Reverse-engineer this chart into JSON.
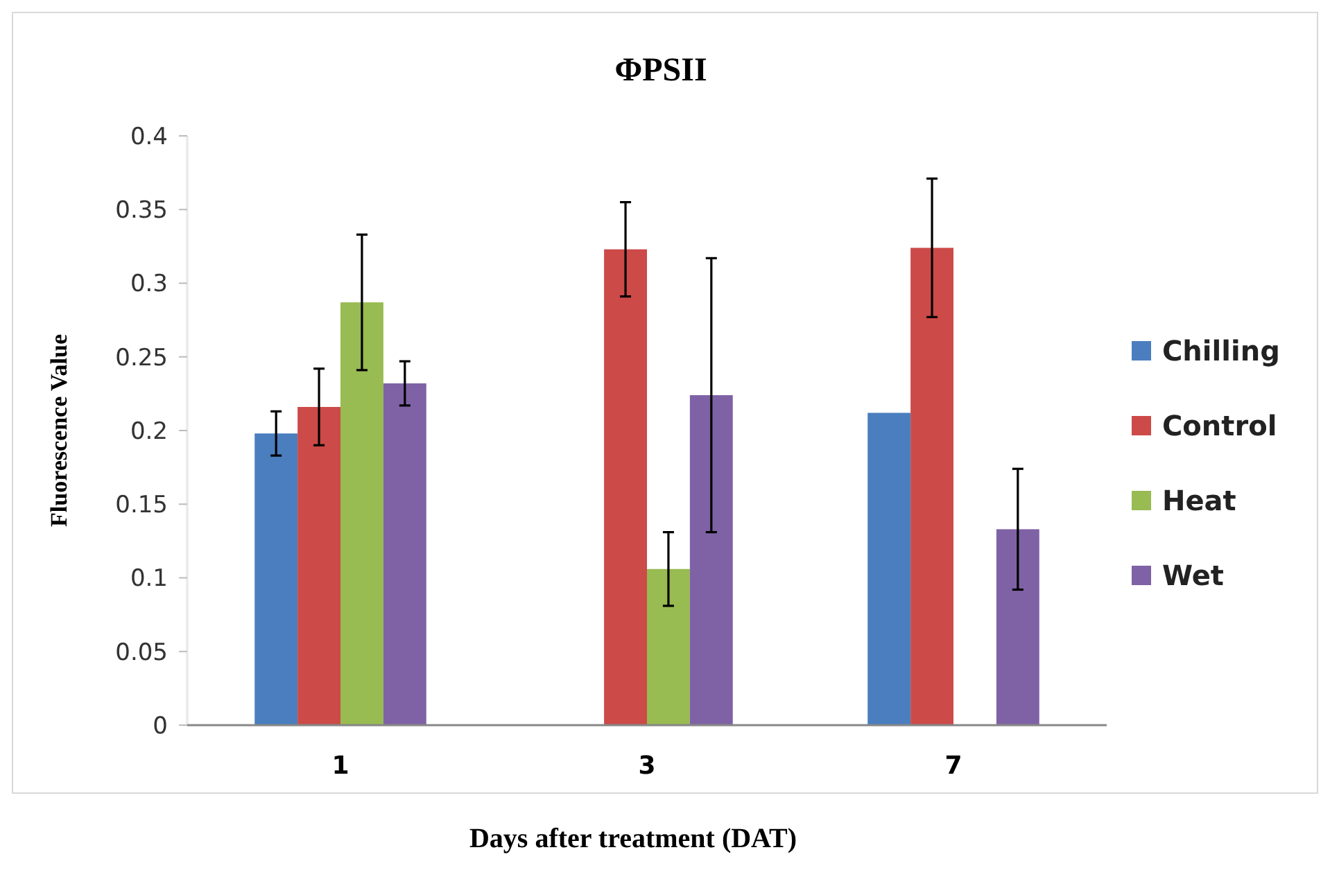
{
  "chart_data": {
    "type": "bar",
    "title": "ΦPSII",
    "xlabel": "Days after treatment (DAT)",
    "ylabel": "Fluorescence Value",
    "categories": [
      "1",
      "3",
      "7"
    ],
    "series": [
      {
        "name": "Chilling",
        "color": "#4a7ebf",
        "values": [
          0.198,
          null,
          0.212
        ],
        "errors": [
          0.015,
          null,
          null
        ]
      },
      {
        "name": "Control",
        "color": "#cc4a48",
        "values": [
          0.216,
          0.323,
          0.324
        ],
        "errors": [
          0.026,
          0.032,
          0.047
        ]
      },
      {
        "name": "Heat",
        "color": "#98bb52",
        "values": [
          0.287,
          0.106,
          null
        ],
        "errors": [
          0.046,
          0.025,
          null
        ]
      },
      {
        "name": "Wet",
        "color": "#7f62a5",
        "values": [
          0.232,
          0.224,
          0.133
        ],
        "errors": [
          0.015,
          0.093,
          0.041
        ]
      }
    ],
    "ylim": [
      0,
      0.4
    ],
    "yticks": [
      0,
      0.05,
      0.1,
      0.15,
      0.2,
      0.25,
      0.3,
      0.35,
      0.4
    ],
    "grid": false,
    "legend": "right"
  }
}
